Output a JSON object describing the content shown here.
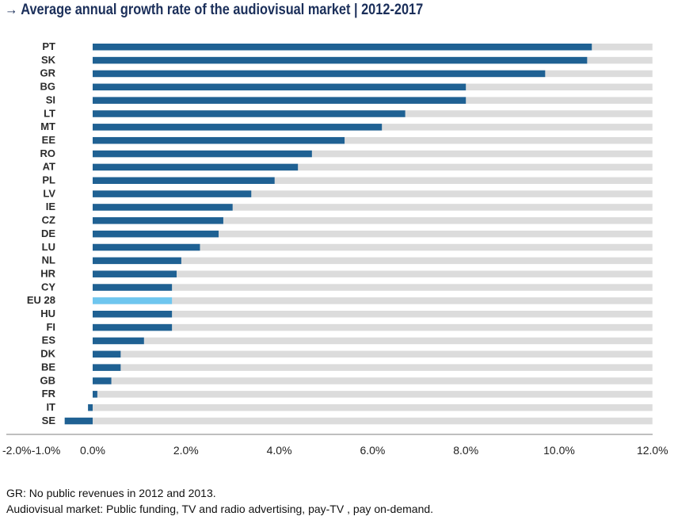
{
  "chart_data": {
    "type": "bar",
    "orientation": "horizontal",
    "title": "→ Average annual growth rate of the audiovisual market | 2012-2017",
    "categories": [
      "PT",
      "SK",
      "GR",
      "BG",
      "SI",
      "LT",
      "MT",
      "EE",
      "RO",
      "AT",
      "PL",
      "LV",
      "IE",
      "CZ",
      "DE",
      "LU",
      "NL",
      "HR",
      "CY",
      "EU 28",
      "HU",
      "FI",
      "ES",
      "DK",
      "BE",
      "GB",
      "FR",
      "IT",
      "SE"
    ],
    "values": [
      10.7,
      10.6,
      9.7,
      8.0,
      8.0,
      6.7,
      6.2,
      5.4,
      4.7,
      4.4,
      3.9,
      3.4,
      3.0,
      2.8,
      2.7,
      2.3,
      1.9,
      1.8,
      1.7,
      1.7,
      1.7,
      1.7,
      1.1,
      0.6,
      0.6,
      0.4,
      0.1,
      -0.1,
      -0.6
    ],
    "highlight": "EU 28",
    "background_max": 12.0,
    "xlim": [
      -2.0,
      12.0
    ],
    "x_ticks": [
      -2.0,
      -1.0,
      0.0,
      2.0,
      4.0,
      6.0,
      8.0,
      10.0,
      12.0
    ],
    "x_tick_labels": [
      "-2.0%",
      "-1.0%",
      "0.0%",
      "2.0%",
      "4.0%",
      "6.0%",
      "8.0%",
      "10.0%",
      "12.0%"
    ],
    "xlabel": "",
    "ylabel": "",
    "colors": {
      "bar": "#1f6193",
      "highlight": "#6ec6ef",
      "track": "#dcdcdc",
      "axis": "#7f7f7f"
    }
  },
  "notes": [
    "GR: No public revenues in 2012 and 2013.",
    "Audiovisual market: Public funding, TV and radio advertising, pay-TV , pay on-demand."
  ]
}
